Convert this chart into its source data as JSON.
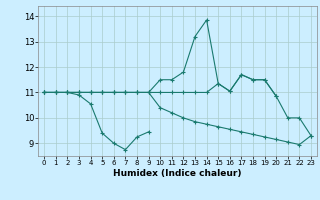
{
  "xlabel": "Humidex (Indice chaleur)",
  "bg_color": "#cceeff",
  "line_color": "#1a7a6e",
  "grid_color": "#aacccc",
  "xlim": [
    -0.5,
    23.5
  ],
  "ylim": [
    8.5,
    14.4
  ],
  "yticks": [
    9,
    10,
    11,
    12,
    13,
    14
  ],
  "xticks": [
    0,
    1,
    2,
    3,
    4,
    5,
    6,
    7,
    8,
    9,
    10,
    11,
    12,
    13,
    14,
    15,
    16,
    17,
    18,
    19,
    20,
    21,
    22,
    23
  ],
  "lines": [
    {
      "x": [
        0,
        1,
        2,
        3,
        4,
        5,
        6,
        7,
        8,
        9
      ],
      "y": [
        11,
        11,
        11,
        10.9,
        10.55,
        9.4,
        9.0,
        8.75,
        9.25,
        9.45
      ]
    },
    {
      "x": [
        0,
        1,
        2,
        3,
        4,
        5,
        6,
        7,
        8,
        9,
        10,
        11,
        12,
        13,
        14,
        15,
        16,
        17,
        18,
        19,
        20,
        21,
        22,
        23
      ],
      "y": [
        11,
        11,
        11,
        11,
        11,
        11,
        11,
        11,
        11,
        11,
        11.5,
        11.5,
        11.8,
        13.2,
        13.85,
        11.35,
        11.05,
        11.7,
        11.5,
        11.5,
        10.85,
        10.0,
        10.0,
        9.3
      ]
    },
    {
      "x": [
        0,
        1,
        2,
        3,
        4,
        5,
        6,
        7,
        8,
        9,
        10,
        11,
        12,
        13,
        14,
        15,
        16,
        17,
        18,
        19,
        20
      ],
      "y": [
        11,
        11,
        11,
        11,
        11,
        11,
        11,
        11,
        11,
        11,
        11,
        11,
        11,
        11,
        11,
        11.35,
        11.05,
        11.7,
        11.5,
        11.5,
        10.85
      ]
    },
    {
      "x": [
        0,
        1,
        2,
        3,
        4,
        5,
        6,
        7,
        8,
        9,
        10,
        11,
        12,
        13,
        14,
        15,
        16,
        17,
        18,
        19,
        20,
        21,
        22,
        23
      ],
      "y": [
        11,
        11,
        11,
        11,
        11,
        11,
        11,
        11,
        11,
        11,
        10.4,
        10.2,
        10.0,
        9.85,
        9.75,
        9.65,
        9.55,
        9.45,
        9.35,
        9.25,
        9.15,
        9.05,
        8.95,
        9.3
      ]
    }
  ]
}
